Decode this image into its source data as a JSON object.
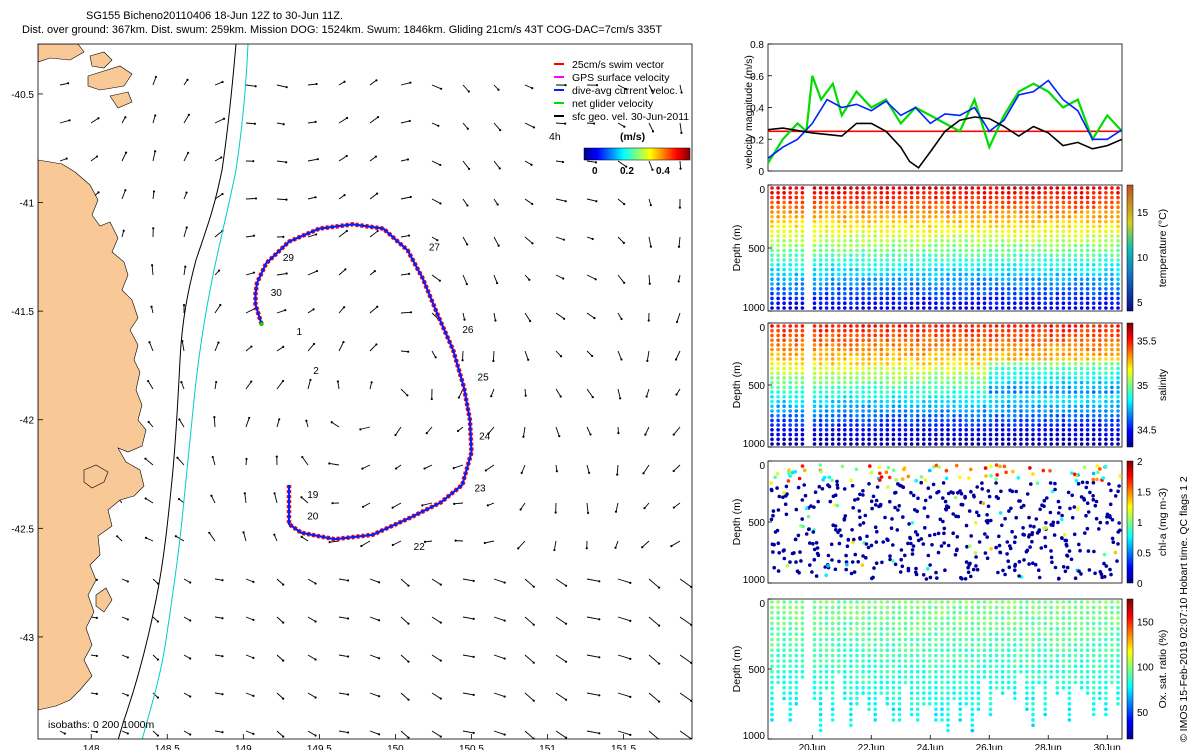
{
  "title_line1": "SG155 Bicheno20110406 18-Jun 12Z to 30-Jun 11Z.",
  "title_line2": "Dist. over ground: 367km. Dist. swum: 259km. Mission DOG: 1524km. Swum: 1846km. Gliding 21cm/s 43T COG-DAC=7cm/s 335T",
  "credit": "© IMOS 15-Feb-2019 02:07:10 Hobart time. QC flags 1  2",
  "colors": {
    "land": "#f8c896",
    "glider_red": "#ff0000",
    "dive_avg_blue": "#0020ff",
    "net_green": "#00dd00",
    "isobath_cyan": "#00cccc",
    "arrow": "#000000"
  },
  "chart_data": [
    {
      "type": "map",
      "name": "glider-track-map",
      "xlim": [
        147.65,
        151.95
      ],
      "ylim": [
        -43.47,
        -40.27
      ],
      "x_ticks": [
        148,
        148.5,
        149,
        149.5,
        150,
        150.5,
        151,
        151.5
      ],
      "x_tick_labels": [
        "148",
        "148.5",
        "149",
        "149.5",
        "150",
        "150.5",
        "151",
        "151.5"
      ],
      "y_ticks": [
        -40.5,
        -41,
        -41.5,
        -42,
        -42.5,
        -43
      ],
      "y_tick_labels": [
        "-40.5",
        "-41",
        "-41.5",
        "-42",
        "-42.5",
        "-43"
      ],
      "legend": [
        {
          "label": "25cm/s swim vector",
          "color": "#ff0000"
        },
        {
          "label": "GPS surface velocity",
          "color": "#ff00ff"
        },
        {
          "label": "dive-avg current veloc.",
          "color": "#0020ff"
        },
        {
          "label": "net glider velocity",
          "color": "#00dd00"
        },
        {
          "label": "sfc geo. vel. 30-Jun-2011",
          "color": "#000000"
        }
      ],
      "legend_extra": "4h",
      "colorbar": {
        "label": "(m/s)",
        "ticks": [
          "0",
          "0.2",
          "0.4"
        ]
      },
      "isobaths_label": "isobaths: 0   200  1000m",
      "track": [
        [
          149.12,
          -41.56
        ],
        [
          149.08,
          -41.47
        ],
        [
          149.08,
          -41.42
        ],
        [
          149.09,
          -41.37
        ],
        [
          149.15,
          -41.28
        ],
        [
          149.3,
          -41.18
        ],
        [
          149.5,
          -41.12
        ],
        [
          149.72,
          -41.1
        ],
        [
          149.92,
          -41.12
        ],
        [
          150.08,
          -41.22
        ],
        [
          150.18,
          -41.35
        ],
        [
          150.28,
          -41.52
        ],
        [
          150.38,
          -41.68
        ],
        [
          150.45,
          -41.85
        ],
        [
          150.49,
          -42.0
        ],
        [
          150.5,
          -42.15
        ],
        [
          150.44,
          -42.3
        ],
        [
          150.3,
          -42.38
        ],
        [
          150.1,
          -42.45
        ],
        [
          149.85,
          -42.53
        ],
        [
          149.6,
          -42.55
        ],
        [
          149.38,
          -42.52
        ],
        [
          149.3,
          -42.48
        ],
        [
          149.3,
          -42.38
        ],
        [
          149.3,
          -42.3
        ]
      ],
      "day_labels": [
        {
          "text": "19",
          "lon": 149.42,
          "lat": -42.36
        },
        {
          "text": "20",
          "lon": 149.42,
          "lat": -42.46
        },
        {
          "text": "22",
          "lon": 150.12,
          "lat": -42.6
        },
        {
          "text": "23",
          "lon": 150.52,
          "lat": -42.33
        },
        {
          "text": "24",
          "lon": 150.55,
          "lat": -42.09
        },
        {
          "text": "25",
          "lon": 150.54,
          "lat": -41.82
        },
        {
          "text": "26",
          "lon": 150.44,
          "lat": -41.6
        },
        {
          "text": "27",
          "lon": 150.22,
          "lat": -41.22
        },
        {
          "text": "29",
          "lon": 149.26,
          "lat": -41.27
        },
        {
          "text": "30",
          "lon": 149.18,
          "lat": -41.43
        },
        {
          "text": "1",
          "lon": 149.35,
          "lat": -41.61
        },
        {
          "text": "2",
          "lon": 149.46,
          "lat": -41.79
        }
      ]
    },
    {
      "type": "line",
      "name": "velocity-magnitude",
      "ylabel": "velocity magnitude (m/s)",
      "ylim": [
        0,
        0.8
      ],
      "y_ticks": [
        "0",
        "0.2",
        "0.4",
        "0.6",
        "0.8"
      ],
      "xlim": [
        18.5,
        30.5
      ],
      "series": [
        {
          "name": "swim speed",
          "color": "#ff0000",
          "x": [
            18.5,
            30.5
          ],
          "values": [
            0.25,
            0.25
          ]
        },
        {
          "name": "net glider velocity",
          "color": "#00dd00",
          "x": [
            18.5,
            19,
            19.5,
            19.8,
            20,
            20.3,
            20.7,
            21,
            21.5,
            22,
            22.5,
            23,
            23.5,
            24,
            24.5,
            25,
            25.5,
            26,
            26.5,
            27,
            27.5,
            28,
            28.5,
            29,
            29.5,
            30,
            30.5
          ],
          "values": [
            0.05,
            0.2,
            0.3,
            0.25,
            0.6,
            0.45,
            0.55,
            0.35,
            0.5,
            0.4,
            0.45,
            0.3,
            0.4,
            0.35,
            0.3,
            0.25,
            0.45,
            0.15,
            0.35,
            0.5,
            0.55,
            0.5,
            0.4,
            0.45,
            0.2,
            0.35,
            0.25
          ]
        },
        {
          "name": "dive-avg current",
          "color": "#0020ff",
          "x": [
            18.5,
            19,
            19.5,
            20,
            20.5,
            21,
            21.5,
            22,
            22.5,
            23,
            23.5,
            24,
            24.5,
            25,
            25.5,
            26,
            26.5,
            27,
            27.5,
            28,
            28.5,
            29,
            29.5,
            30,
            30.5
          ],
          "values": [
            0.08,
            0.15,
            0.2,
            0.3,
            0.45,
            0.4,
            0.42,
            0.38,
            0.44,
            0.35,
            0.4,
            0.3,
            0.36,
            0.35,
            0.4,
            0.25,
            0.32,
            0.48,
            0.5,
            0.57,
            0.45,
            0.38,
            0.2,
            0.2,
            0.26
          ]
        },
        {
          "name": "sfc geo. vel.",
          "color": "#000000",
          "x": [
            18.5,
            19,
            20,
            21,
            21.5,
            22,
            22.5,
            23,
            23.3,
            23.6,
            24,
            24.5,
            25,
            25.5,
            26,
            26.5,
            27,
            27.5,
            28,
            28.5,
            29,
            29.5,
            30,
            30.5
          ],
          "values": [
            0.26,
            0.27,
            0.24,
            0.22,
            0.3,
            0.3,
            0.25,
            0.15,
            0.06,
            0.02,
            0.12,
            0.25,
            0.32,
            0.34,
            0.33,
            0.28,
            0.22,
            0.28,
            0.24,
            0.16,
            0.18,
            0.14,
            0.16,
            0.2
          ]
        }
      ]
    },
    {
      "type": "scatter",
      "name": "temperature-section",
      "ylabel": "Depth (m)",
      "cbar_label": "temperature (°C)",
      "y_ticks": [
        "0",
        "500",
        "1000"
      ],
      "cbar_ticks": [
        "5",
        "10",
        "15"
      ],
      "crange": [
        4,
        18
      ]
    },
    {
      "type": "scatter",
      "name": "salinity-section",
      "ylabel": "Depth (m)",
      "cbar_label": "salinity",
      "y_ticks": [
        "0",
        "500",
        "1000"
      ],
      "cbar_ticks": [
        "34.5",
        "35",
        "35.5"
      ],
      "crange": [
        34.3,
        35.7
      ]
    },
    {
      "type": "scatter",
      "name": "chla-section",
      "ylabel": "Depth (m)",
      "cbar_label": "chl-a (mg m-3)",
      "y_ticks": [
        "0",
        "500",
        "1000"
      ],
      "cbar_ticks": [
        "0",
        "0.5",
        "1",
        "1.5",
        "2"
      ],
      "crange": [
        0,
        2
      ]
    },
    {
      "type": "scatter",
      "name": "oxygen-section",
      "ylabel": "Depth (m)",
      "cbar_label": "Ox. sat. ratio (%)",
      "y_ticks": [
        "0",
        "500",
        "1000"
      ],
      "cbar_ticks": [
        "50",
        "100",
        "150"
      ],
      "crange": [
        20,
        175
      ],
      "x_ticks": [
        "20Jun",
        "22Jun",
        "24Jun",
        "26Jun",
        "28Jun",
        "30Jun"
      ],
      "x_tick_days": [
        20,
        22,
        24,
        26,
        28,
        30
      ]
    }
  ]
}
